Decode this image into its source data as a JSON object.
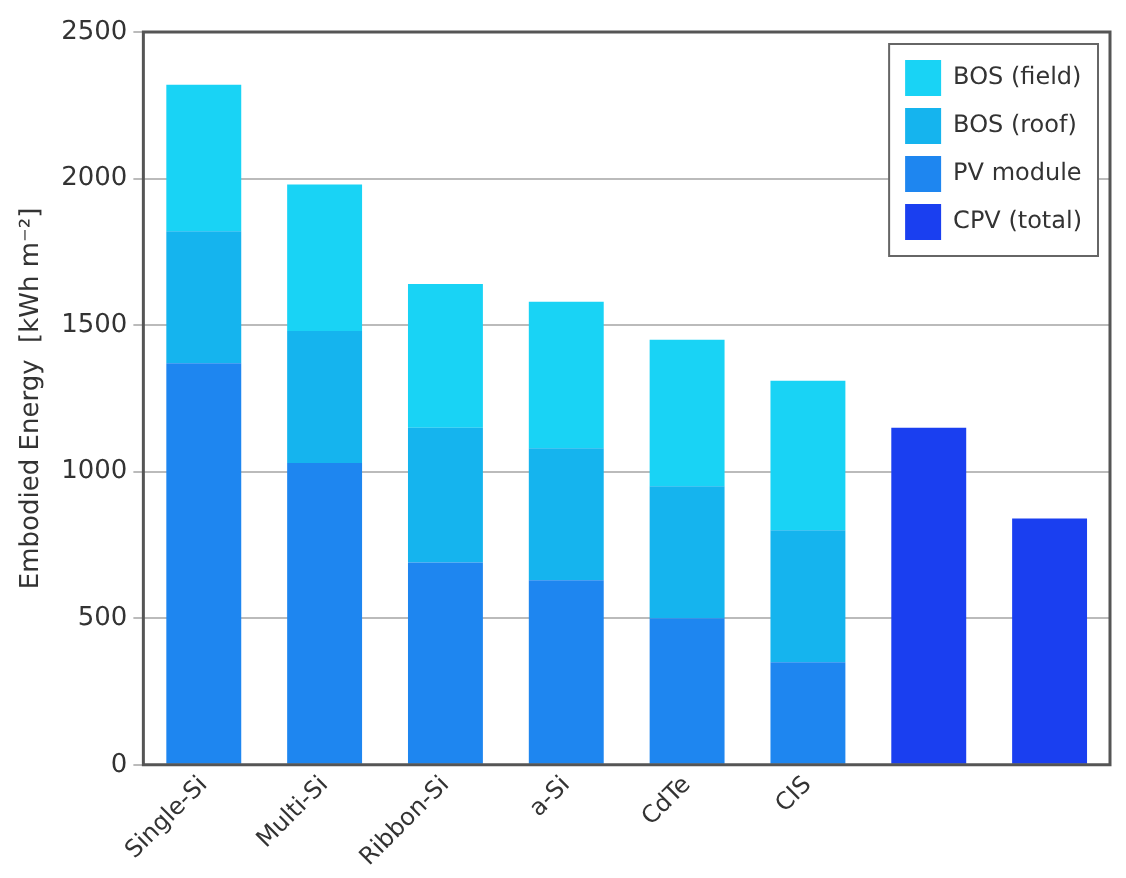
{
  "chart_data": {
    "type": "bar",
    "stacked": true,
    "ylabel": "Embodied Energy  [kWh m⁻²]",
    "categories": [
      "Single-Si",
      "Multi-Si",
      "Ribbon-Si",
      "a-Si",
      "CdTe",
      "CIS",
      null,
      null
    ],
    "series": [
      {
        "name": "CPV (total)",
        "color": "#1a3ff0",
        "values": [
          null,
          null,
          null,
          null,
          null,
          null,
          1150,
          840
        ]
      },
      {
        "name": "PV module",
        "color": "#1e86f0",
        "values": [
          1370,
          1030,
          690,
          630,
          500,
          350,
          null,
          null
        ]
      },
      {
        "name": "BOS (roof)",
        "color": "#15b4ee",
        "values": [
          450,
          450,
          460,
          450,
          450,
          450,
          null,
          null
        ]
      },
      {
        "name": "BOS (field)",
        "color": "#19d3f5",
        "values": [
          500,
          500,
          490,
          500,
          500,
          510,
          null,
          null
        ]
      }
    ],
    "ylim": [
      0,
      2500
    ],
    "yticks": [
      0,
      500,
      1000,
      1500,
      2000,
      2500
    ],
    "grid": "y",
    "legend": "top right"
  }
}
